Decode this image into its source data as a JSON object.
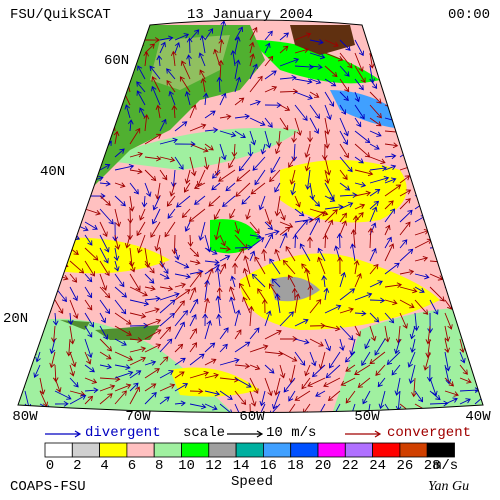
{
  "header": {
    "left": "FSU/QuikSCAT",
    "center": "13 January 2004",
    "right": "00:00"
  },
  "map": {
    "lat_labels": [
      "60N",
      "40N",
      "20N"
    ],
    "lon_labels": [
      "80W",
      "70W",
      "60W",
      "50W",
      "40W"
    ]
  },
  "legend": {
    "divergent": "divergent",
    "scale": "scale",
    "scale_value": "10 m/s",
    "convergent": "convergent"
  },
  "colorbar": {
    "labels": [
      "0",
      "2",
      "4",
      "6",
      "8",
      "10",
      "12",
      "14",
      "16",
      "18",
      "20",
      "22",
      "24",
      "26",
      "28"
    ],
    "colors": [
      "#ffffff",
      "#d0d0d0",
      "#ffff00",
      "#ffc0c0",
      "#a0f0a0",
      "#00ff00",
      "#a0a0a0",
      "#00b0a0",
      "#40a0ff",
      "#0050ff",
      "#ff00ff",
      "#b070ff",
      "#ff0000",
      "#d04000",
      "#000000"
    ],
    "unit": "m/s",
    "title": "Speed"
  },
  "footer": {
    "left": "COAPS-FSU",
    "right": "Yan Gu"
  }
}
